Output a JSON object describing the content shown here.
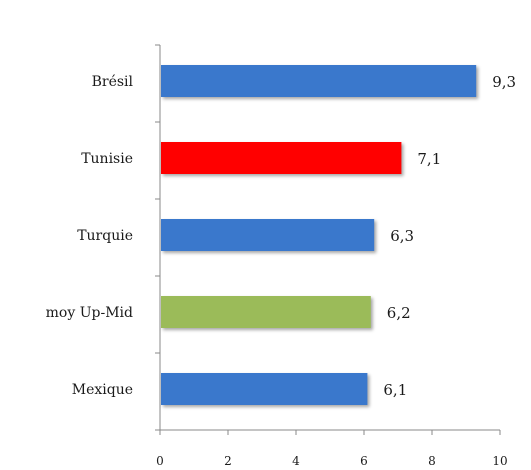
{
  "chart_data": {
    "type": "bar",
    "orientation": "horizontal",
    "categories": [
      "Brésil",
      "Tunisie",
      "Turquie",
      "moy Up-Mid",
      "Mexique"
    ],
    "values": [
      9.3,
      7.1,
      6.3,
      6.2,
      6.1
    ],
    "value_labels": [
      "9,3",
      "7,1",
      "6,3",
      "6,2",
      "6,1"
    ],
    "colors": [
      "#3a78cc",
      "#ff0000",
      "#3a78cc",
      "#9bbb59",
      "#3a78cc"
    ],
    "xlim": [
      0,
      10
    ],
    "x_ticks": [
      "0",
      "2",
      "4",
      "6",
      "8",
      "10"
    ],
    "grid": false,
    "title": "",
    "xlabel": "",
    "ylabel": ""
  }
}
